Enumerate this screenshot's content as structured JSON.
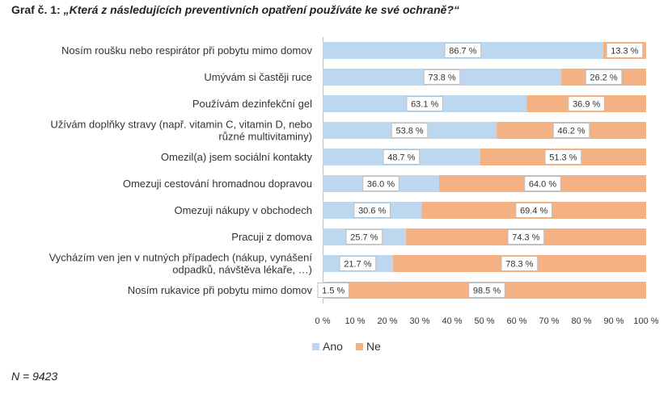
{
  "title_prefix": "Graf č. 1: ",
  "title_question": "„Která z následujících preventivních opatření používáte ke své ochraně?“",
  "note": "N = 9423",
  "chart_data": {
    "type": "bar",
    "orientation": "horizontal",
    "stacked": "percent",
    "categories": [
      "Nosím roušku nebo respirátor při pobytu mimo domov",
      "Umývám si častěji ruce",
      "Používám dezinfekční gel",
      "Užívám doplňky stravy (např. vitamin C, vitamin D, nebo|různé multivitaminy)",
      "Omezil(a) jsem sociální kontakty",
      "Omezuji cestování hromadnou dopravou",
      "Omezuji nákupy v obchodech",
      "Pracuji z domova",
      "Vycházím ven jen v nutných případech (nákup, vynášení|odpadků, návštěva lékaře, …)",
      "Nosím rukavice při pobytu mimo domov"
    ],
    "series": [
      {
        "name": "Ano",
        "color": "#bdd7ee",
        "values": [
          86.7,
          73.8,
          63.1,
          53.8,
          48.7,
          36.0,
          30.6,
          25.7,
          21.7,
          1.5
        ],
        "labels": [
          "86.7 %",
          "73.8 %",
          "63.1 %",
          "53.8 %",
          "48.7 %",
          "36.0 %",
          "30.6 %",
          "25.7 %",
          "21.7 %",
          "1.5 %"
        ]
      },
      {
        "name": "Ne",
        "color": "#f4b183",
        "values": [
          13.3,
          26.2,
          36.9,
          46.2,
          51.3,
          64.0,
          69.4,
          74.3,
          78.3,
          98.5
        ],
        "labels": [
          "13.3 %",
          "26.2 %",
          "36.9 %",
          "46.2 %",
          "51.3 %",
          "64.0 %",
          "69.4 %",
          "74.3 %",
          "78.3 %",
          "98.5 %"
        ]
      }
    ],
    "xlim": [
      0,
      100
    ],
    "xticks": [
      "0 %",
      "10 %",
      "20 %",
      "30 %",
      "40 %",
      "50 %",
      "60 %",
      "70 %",
      "80 %",
      "90 %",
      "100 %"
    ],
    "legend_position": "bottom",
    "grid": false
  }
}
